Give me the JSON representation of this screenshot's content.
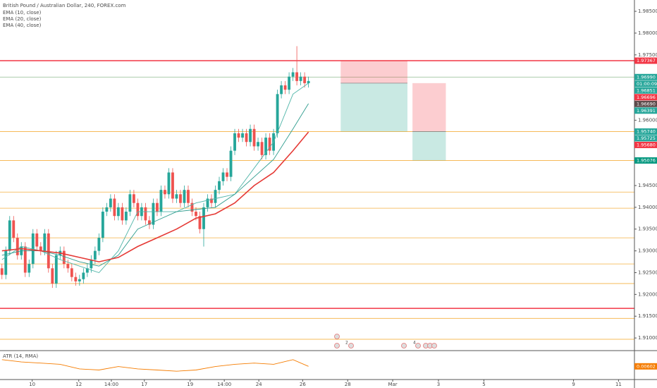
{
  "chart_data": {
    "type": "candlestick",
    "title": "British Pound / Australian Dollar, 240, FOREX.com",
    "xlim": [
      -0.5,
      163
    ],
    "ylim": [
      1.9071,
      1.9876
    ],
    "xticks": [
      {
        "value": 7.8,
        "label": "10"
      },
      {
        "value": 19.8,
        "label": "12"
      },
      {
        "value": 28.2,
        "label": "14:00"
      },
      {
        "value": 36.7,
        "label": "17"
      },
      {
        "value": 48.5,
        "label": "19"
      },
      {
        "value": 57.3,
        "label": "14:00"
      },
      {
        "value": 66.2,
        "label": "24"
      },
      {
        "value": 77.5,
        "label": "26"
      },
      {
        "value": 89.1,
        "label": "28"
      },
      {
        "value": 100.7,
        "label": "Mar"
      },
      {
        "value": 112.5,
        "label": "3"
      },
      {
        "value": 124.2,
        "label": "5"
      },
      {
        "value": 147.3,
        "label": "9"
      },
      {
        "value": 158.9,
        "label": "11"
      }
    ],
    "yticks": [
      {
        "value": 1.985,
        "label": "1.98500"
      },
      {
        "value": 1.98,
        "label": "1.98000"
      },
      {
        "value": 1.975,
        "label": "1.97500"
      },
      {
        "value": 1.96,
        "label": "1.96000"
      },
      {
        "value": 1.945,
        "label": "1.94500"
      },
      {
        "value": 1.94,
        "label": "1.94000"
      },
      {
        "value": 1.935,
        "label": "1.93500"
      },
      {
        "value": 1.93,
        "label": "1.93000"
      },
      {
        "value": 1.925,
        "label": "1.92500"
      },
      {
        "value": 1.92,
        "label": "1.92000"
      },
      {
        "value": 1.915,
        "label": "1.91500"
      },
      {
        "value": 1.91,
        "label": "1.91000"
      }
    ],
    "up_color": "#26a69a",
    "down_color": "#ef5350",
    "open": [
      1.926,
      1.9245,
      1.93,
      1.937,
      1.933,
      1.929,
      1.931,
      1.925,
      1.927,
      1.934,
      1.931,
      1.93,
      1.934,
      1.926,
      1.9225,
      1.929,
      1.93,
      1.927,
      1.926,
      1.924,
      1.923,
      1.9235,
      1.925,
      1.926,
      1.928,
      1.93,
      1.933,
      1.939,
      1.94,
      1.942,
      1.938,
      1.94,
      1.937,
      1.939,
      1.943,
      1.941,
      1.938,
      1.94,
      1.937,
      1.936,
      1.941,
      1.939,
      1.944,
      1.943,
      1.948,
      1.942,
      1.943,
      1.941,
      1.944,
      1.941,
      1.939,
      1.938,
      1.935,
      1.94,
      1.942,
      1.941,
      1.944,
      1.946,
      1.948,
      1.947,
      1.953,
      1.957,
      1.956,
      1.957,
      1.955,
      1.958,
      1.954,
      1.955,
      1.952,
      1.956,
      1.953,
      1.957,
      1.966,
      1.968,
      1.967,
      1.97,
      1.971,
      1.969,
      1.97,
      1.9685
    ],
    "high": [
      1.927,
      1.931,
      1.938,
      1.938,
      1.934,
      1.932,
      1.932,
      1.928,
      1.935,
      1.935,
      1.932,
      1.935,
      1.935,
      1.927,
      1.93,
      1.931,
      1.931,
      1.928,
      1.927,
      1.925,
      1.9245,
      1.926,
      1.927,
      1.929,
      1.931,
      1.934,
      1.94,
      1.941,
      1.943,
      1.943,
      1.941,
      1.941,
      1.94,
      1.944,
      1.944,
      1.942,
      1.941,
      1.941,
      1.938,
      1.942,
      1.942,
      1.945,
      1.945,
      1.949,
      1.949,
      1.944,
      1.944,
      1.945,
      1.945,
      1.942,
      1.94,
      1.939,
      1.941,
      1.943,
      1.943,
      1.945,
      1.947,
      1.949,
      1.949,
      1.954,
      1.958,
      1.958,
      1.958,
      1.958,
      1.959,
      1.959,
      1.956,
      1.956,
      1.957,
      1.957,
      1.958,
      1.967,
      1.969,
      1.969,
      1.971,
      1.972,
      1.977,
      1.971,
      1.971,
      1.97
    ],
    "low": [
      1.9235,
      1.9235,
      1.929,
      1.932,
      1.928,
      1.928,
      1.924,
      1.924,
      1.926,
      1.93,
      1.929,
      1.929,
      1.925,
      1.9215,
      1.9215,
      1.928,
      1.926,
      1.925,
      1.923,
      1.922,
      1.922,
      1.9225,
      1.924,
      1.925,
      1.927,
      1.929,
      1.932,
      1.938,
      1.939,
      1.937,
      1.937,
      1.936,
      1.936,
      1.938,
      1.94,
      1.937,
      1.937,
      1.936,
      1.935,
      1.935,
      1.938,
      1.938,
      1.942,
      1.942,
      1.941,
      1.941,
      1.94,
      1.94,
      1.94,
      1.938,
      1.937,
      1.934,
      1.931,
      1.939,
      1.94,
      1.94,
      1.943,
      1.945,
      1.946,
      1.946,
      1.952,
      1.955,
      1.955,
      1.954,
      1.954,
      1.953,
      1.953,
      1.951,
      1.951,
      1.952,
      1.952,
      1.956,
      1.965,
      1.966,
      1.966,
      1.969,
      1.968,
      1.968,
      1.9675,
      1.9675
    ],
    "close": [
      1.9245,
      1.93,
      1.937,
      1.933,
      1.929,
      1.931,
      1.925,
      1.927,
      1.934,
      1.931,
      1.93,
      1.934,
      1.926,
      1.9225,
      1.929,
      1.93,
      1.927,
      1.926,
      1.924,
      1.923,
      1.9235,
      1.925,
      1.926,
      1.928,
      1.93,
      1.933,
      1.939,
      1.94,
      1.942,
      1.938,
      1.94,
      1.937,
      1.939,
      1.943,
      1.941,
      1.938,
      1.94,
      1.937,
      1.936,
      1.941,
      1.939,
      1.944,
      1.943,
      1.948,
      1.942,
      1.943,
      1.941,
      1.944,
      1.941,
      1.939,
      1.938,
      1.935,
      1.94,
      1.942,
      1.941,
      1.944,
      1.946,
      1.948,
      1.947,
      1.953,
      1.957,
      1.956,
      1.957,
      1.955,
      1.958,
      1.954,
      1.955,
      1.952,
      1.956,
      1.953,
      1.957,
      1.966,
      1.968,
      1.967,
      1.97,
      1.971,
      1.969,
      1.97,
      1.9685,
      1.969
    ],
    "series": [
      {
        "name": "EMA (10, close)",
        "color": "#4fb5a8",
        "x": [
          0,
          5,
          10,
          15,
          20,
          25,
          30,
          35,
          40,
          45,
          50,
          55,
          60,
          65,
          70,
          75,
          79
        ],
        "values": [
          1.928,
          1.931,
          1.93,
          1.928,
          1.9265,
          1.925,
          1.93,
          1.939,
          1.939,
          1.939,
          1.941,
          1.942,
          1.943,
          1.949,
          1.955,
          1.966,
          1.9685
        ]
      },
      {
        "name": "EMA (20, close)",
        "color": "#2e9c8e",
        "x": [
          0,
          5,
          10,
          15,
          20,
          25,
          30,
          35,
          40,
          45,
          50,
          55,
          60,
          65,
          70,
          75,
          79
        ],
        "values": [
          1.929,
          1.93,
          1.93,
          1.929,
          1.9275,
          1.9265,
          1.929,
          1.935,
          1.937,
          1.939,
          1.9395,
          1.94,
          1.943,
          1.947,
          1.951,
          1.958,
          1.9638
        ]
      },
      {
        "name": "EMA (40, close)",
        "color": "#e53935",
        "x": [
          0,
          5,
          10,
          15,
          20,
          25,
          30,
          35,
          40,
          45,
          50,
          55,
          60,
          65,
          70,
          75,
          79
        ],
        "values": [
          1.93,
          1.9305,
          1.93,
          1.9295,
          1.9285,
          1.9275,
          1.9285,
          1.931,
          1.933,
          1.935,
          1.9375,
          1.9385,
          1.941,
          1.945,
          1.948,
          1.953,
          1.9573
        ]
      }
    ],
    "levels": [
      {
        "value": 1.97367,
        "color": "#f23645"
      },
      {
        "value": 1.9699,
        "color": "#8fbc8f"
      },
      {
        "value": 1.9574,
        "color": "#f5b041"
      },
      {
        "value": 1.95076,
        "color": "#f5b041"
      },
      {
        "value": 1.9435,
        "color": "#f5b041"
      },
      {
        "value": 1.9398,
        "color": "#f5b041"
      },
      {
        "value": 1.933,
        "color": "#f5b041"
      },
      {
        "value": 1.927,
        "color": "#f5b041"
      },
      {
        "value": 1.9225,
        "color": "#f5b041"
      },
      {
        "value": 1.9168,
        "color": "#f23645"
      },
      {
        "value": 1.9145,
        "color": "#f5b041"
      },
      {
        "value": 1.9097,
        "color": "#f5b041"
      }
    ],
    "positions": [
      {
        "x": [
          87.3,
          104.5
        ],
        "stop": 1.97367,
        "entry": 1.96851,
        "target": 1.9574
      },
      {
        "x": [
          105.8,
          114.4
        ],
        "stop": 1.96851,
        "entry": 1.9574,
        "target": 1.95076
      }
    ],
    "price_labels": [
      {
        "value": 1.97367,
        "label": "1.97367",
        "color": "#f23645"
      },
      {
        "value": 1.9699,
        "label": "1.96990",
        "color": "#26a69a",
        "countdown": "01:00:09"
      },
      {
        "value": 1.96851,
        "label": "1.96851",
        "color": "#26a69a"
      },
      {
        "value": 1.96696,
        "label": "1.96696",
        "color": "#f23645"
      },
      {
        "value": 1.9669,
        "label": "1.96690",
        "color": "#5d4b4b"
      },
      {
        "value": 1.96391,
        "label": "1.96391",
        "color": "#26a69a"
      },
      {
        "value": 1.9574,
        "label": "1.95740",
        "color": "#26a69a"
      },
      {
        "value": 1.95725,
        "label": "1.95725",
        "color": "#26a69a"
      },
      {
        "value": 1.9568,
        "label": "1.95680",
        "color": "#f23645"
      },
      {
        "value": 1.95076,
        "label": "1.95076",
        "color": "#089981"
      }
    ],
    "events": [
      "2",
      "4"
    ],
    "atr": {
      "name": "ATR (14, RMA)",
      "color": "#f57c00",
      "ylim": [
        0.005,
        0.0072
      ],
      "x": [
        0,
        5,
        10,
        15,
        20,
        25,
        30,
        35,
        40,
        45,
        50,
        55,
        60,
        65,
        70,
        75,
        79
      ],
      "values": [
        0.0066,
        0.0064,
        0.0063,
        0.0062,
        0.0058,
        0.0057,
        0.006,
        0.0058,
        0.0057,
        0.0056,
        0.0057,
        0.006,
        0.0062,
        0.0063,
        0.0062,
        0.0066,
        0.00602
      ],
      "label": "0.00602",
      "last": 0.00602
    }
  }
}
